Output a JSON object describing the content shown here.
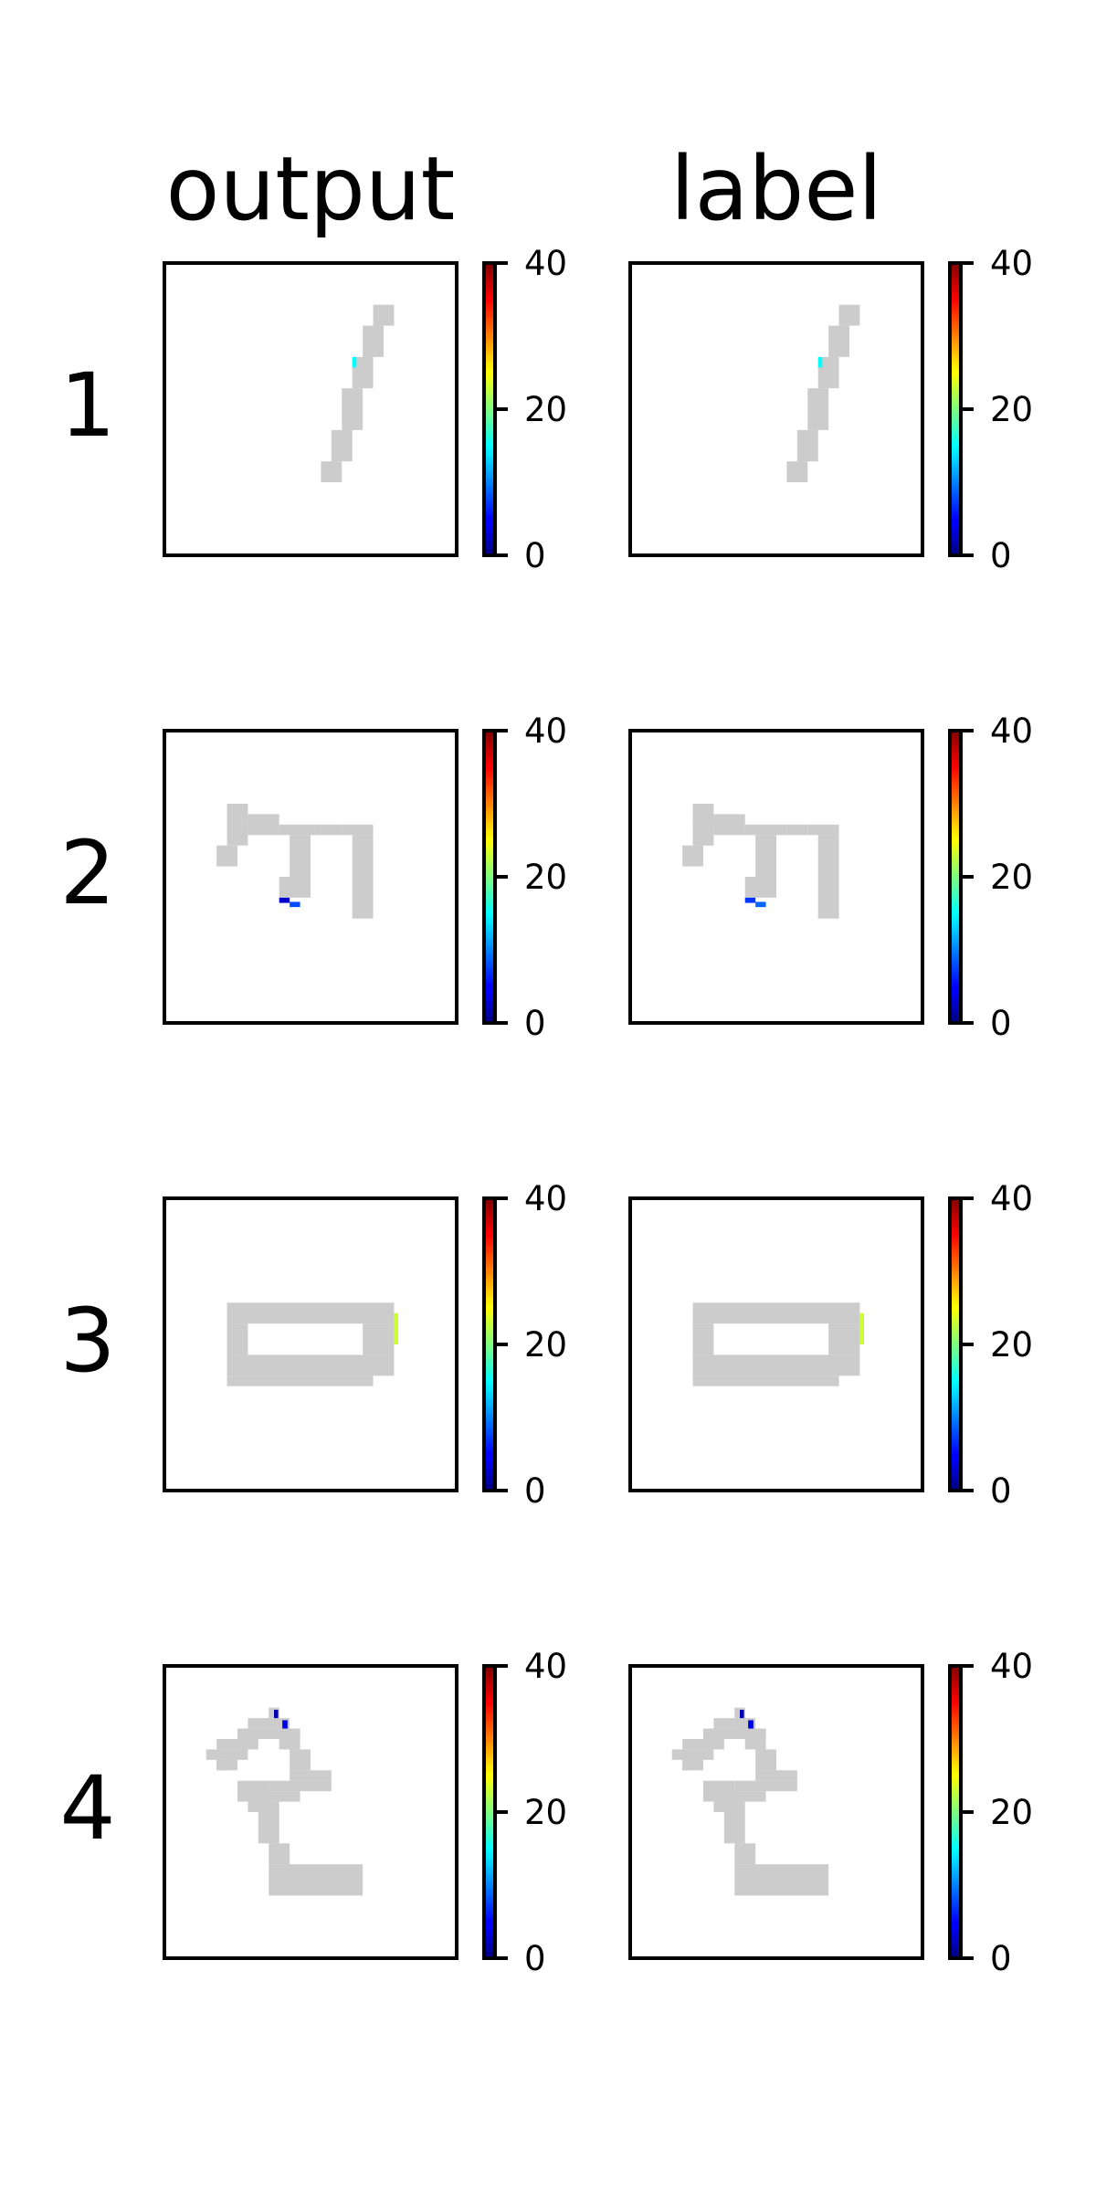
{
  "chart_data": {
    "type": "heatmap",
    "columns": [
      "output",
      "label"
    ],
    "rows": [
      "1",
      "2",
      "3",
      "4"
    ],
    "colorbar": {
      "colormap": "jet",
      "range": [
        0,
        40
      ],
      "ticks": [
        0,
        20,
        40
      ],
      "tick_labels": [
        "0",
        "20",
        "40"
      ]
    },
    "background_value_color": "#cccccc",
    "grid_size": 28,
    "panels": [
      {
        "row": "1",
        "column": "output",
        "gray_rects": [
          [
            20,
            4,
            22,
            6
          ],
          [
            19,
            6,
            21,
            9
          ],
          [
            18,
            9,
            20,
            12
          ],
          [
            17,
            12,
            19,
            16
          ],
          [
            16,
            16,
            18,
            19
          ],
          [
            15,
            19,
            17,
            21
          ]
        ],
        "colored": [
          {
            "x": 18,
            "y": 9,
            "w": 0.4,
            "h": 1,
            "value": 15
          }
        ]
      },
      {
        "row": "1",
        "column": "label",
        "gray_rects": [
          [
            20,
            4,
            22,
            6
          ],
          [
            19,
            6,
            21,
            9
          ],
          [
            18,
            9,
            20,
            12
          ],
          [
            17,
            12,
            19,
            16
          ],
          [
            16,
            16,
            18,
            19
          ],
          [
            15,
            19,
            17,
            21
          ]
        ],
        "colored": [
          {
            "x": 18,
            "y": 9,
            "w": 0.4,
            "h": 1,
            "value": 15
          }
        ]
      },
      {
        "row": "2",
        "column": "output",
        "gray_rects": [
          [
            6,
            7,
            8,
            9
          ],
          [
            8,
            8,
            11,
            10
          ],
          [
            11,
            9,
            15,
            10
          ],
          [
            15,
            9,
            17,
            10
          ],
          [
            17,
            9,
            20,
            10
          ],
          [
            18,
            10,
            20,
            18
          ],
          [
            12,
            10,
            14,
            15
          ],
          [
            11,
            14,
            14,
            16
          ],
          [
            6,
            9,
            8,
            11
          ],
          [
            5,
            11,
            7,
            13
          ]
        ],
        "colored": [
          {
            "x": 11,
            "y": 16,
            "w": 1,
            "h": 0.5,
            "value": 3
          },
          {
            "x": 12,
            "y": 16.4,
            "w": 1,
            "h": 0.5,
            "value": 8
          }
        ]
      },
      {
        "row": "2",
        "column": "label",
        "gray_rects": [
          [
            6,
            7,
            8,
            9
          ],
          [
            8,
            8,
            11,
            10
          ],
          [
            11,
            9,
            15,
            10
          ],
          [
            15,
            9,
            17,
            10
          ],
          [
            17,
            9,
            20,
            10
          ],
          [
            18,
            10,
            20,
            18
          ],
          [
            12,
            10,
            14,
            15
          ],
          [
            11,
            14,
            14,
            16
          ],
          [
            6,
            9,
            8,
            11
          ],
          [
            5,
            11,
            7,
            13
          ]
        ],
        "colored": [
          {
            "x": 11,
            "y": 16,
            "w": 1,
            "h": 0.5,
            "value": 7
          },
          {
            "x": 12,
            "y": 16.4,
            "w": 1,
            "h": 0.5,
            "value": 9
          }
        ]
      },
      {
        "row": "3",
        "column": "output",
        "gray_rects": [
          [
            6,
            10,
            22,
            12
          ],
          [
            6,
            12,
            8,
            15
          ],
          [
            19,
            12,
            22,
            15
          ],
          [
            6,
            15,
            22,
            17
          ],
          [
            6,
            17,
            20,
            18
          ]
        ],
        "colored": [
          {
            "x": 22,
            "y": 11,
            "w": 0.4,
            "h": 3,
            "value": 23
          }
        ]
      },
      {
        "row": "3",
        "column": "label",
        "gray_rects": [
          [
            6,
            10,
            22,
            12
          ],
          [
            6,
            12,
            8,
            15
          ],
          [
            19,
            12,
            22,
            15
          ],
          [
            6,
            15,
            22,
            17
          ],
          [
            6,
            17,
            20,
            18
          ]
        ],
        "colored": [
          {
            "x": 22,
            "y": 11,
            "w": 0.4,
            "h": 3,
            "value": 23
          }
        ]
      },
      {
        "row": "4",
        "column": "output",
        "gray_rects": [
          [
            10,
            4,
            11,
            5
          ],
          [
            8,
            5,
            12,
            6
          ],
          [
            7,
            6,
            13,
            7
          ],
          [
            5,
            7,
            9,
            8
          ],
          [
            4,
            8,
            8,
            9
          ],
          [
            5,
            9,
            6,
            10
          ],
          [
            11,
            6,
            13,
            8
          ],
          [
            12,
            8,
            14,
            10
          ],
          [
            12,
            10,
            16,
            11
          ],
          [
            10,
            11,
            16,
            12
          ],
          [
            8,
            12,
            13,
            13
          ],
          [
            8,
            13,
            11,
            14
          ],
          [
            9,
            14,
            11,
            17
          ],
          [
            10,
            17,
            12,
            19
          ],
          [
            10,
            19,
            19,
            22
          ],
          [
            7,
            11,
            10,
            13
          ],
          [
            5,
            9,
            7,
            10
          ]
        ],
        "colored": [
          {
            "x": 10.5,
            "y": 4.2,
            "w": 0.4,
            "h": 0.8,
            "value": 2
          },
          {
            "x": 11.3,
            "y": 5.2,
            "w": 0.5,
            "h": 0.8,
            "value": 4
          }
        ]
      },
      {
        "row": "4",
        "column": "label",
        "gray_rects": [
          [
            10,
            4,
            11,
            5
          ],
          [
            8,
            5,
            12,
            6
          ],
          [
            7,
            6,
            13,
            7
          ],
          [
            5,
            7,
            9,
            8
          ],
          [
            4,
            8,
            8,
            9
          ],
          [
            5,
            9,
            6,
            10
          ],
          [
            11,
            6,
            13,
            8
          ],
          [
            12,
            8,
            14,
            10
          ],
          [
            12,
            10,
            16,
            11
          ],
          [
            10,
            11,
            16,
            12
          ],
          [
            8,
            12,
            13,
            13
          ],
          [
            8,
            13,
            11,
            14
          ],
          [
            9,
            14,
            11,
            17
          ],
          [
            10,
            17,
            12,
            19
          ],
          [
            10,
            19,
            19,
            22
          ],
          [
            7,
            11,
            10,
            13
          ],
          [
            5,
            9,
            7,
            10
          ]
        ],
        "colored": [
          {
            "x": 10.5,
            "y": 4.2,
            "w": 0.4,
            "h": 0.8,
            "value": 2
          },
          {
            "x": 11.3,
            "y": 5.2,
            "w": 0.5,
            "h": 0.8,
            "value": 4
          }
        ]
      }
    ]
  }
}
